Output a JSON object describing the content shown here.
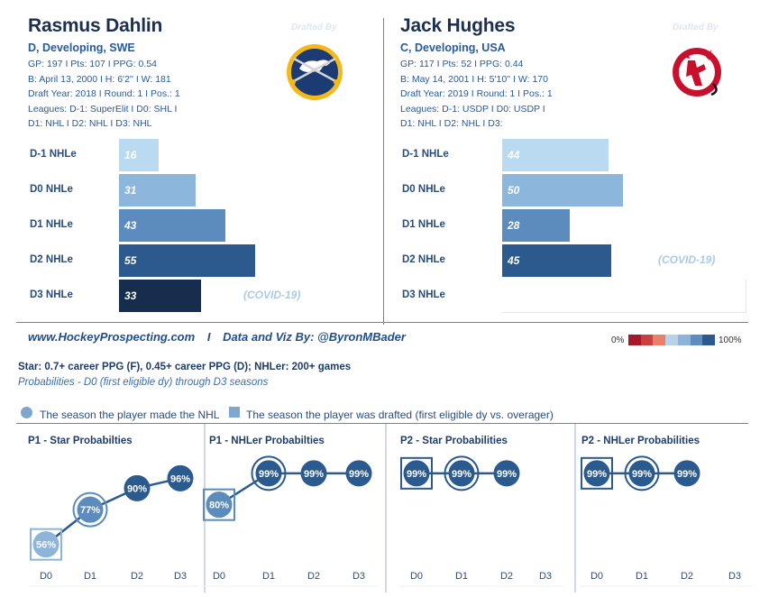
{
  "players": [
    {
      "name": "Rasmus Dahlin",
      "subtitle": "D, Developing, SWE",
      "info": [
        "GP: 197 I Pts: 107 I PPG: 0.54",
        "B: April 13, 2000 I H: 6'2'' I W: 181",
        "Draft Year: 2018 I Round: 1 I Pos.: 1",
        "Leagues: D-1: SuperElit I D0: SHL I",
        "D1: NHL I D2: NHL I D3: NHL"
      ],
      "drafted_by": "Drafted By",
      "team_logo": "buffalo-sabres-logo",
      "covid_note": "(COVID-19)"
    },
    {
      "name": "Jack Hughes",
      "subtitle": "C, Developing, USA",
      "info": [
        "GP: 117 I Pts: 52 I PPG: 0.44",
        "B: May 14, 2001 I H: 5'10'' I W: 170",
        "Draft Year: 2019 I Round: 1 I Pos.: 1",
        "Leagues: D-1: USDP I D0: USDP I",
        "D1: NHL I D2: NHL I D3:"
      ],
      "drafted_by": "Drafted By",
      "team_logo": "new-jersey-devils-logo",
      "covid_note": "(COVID-19)"
    }
  ],
  "footer": {
    "site": "www.HockeyProspecting.com",
    "divider": "I",
    "credit": "Data and Viz By: @ByronMBader",
    "scale_min": "0%",
    "scale_max": "100%",
    "scale_colors": [
      "#a3182b",
      "#c8413f",
      "#e8806b",
      "#b9d2e8",
      "#8fb3d8",
      "#5f8cbf",
      "#2d5a8e"
    ]
  },
  "definitions": {
    "line1": "Star: 0.7+ career PPG (F), 0.45+ career PPG (D); NHLer: 200+ games",
    "line2": "Probabilities - D0 (first eligible dy) through D3 seasons"
  },
  "legend": {
    "nhl_season": "The season the player made the NHL",
    "drafted_season": "The season the player was drafted (first eligible dy vs. overager)"
  },
  "colors": {
    "d_minus1": "#b9daf0",
    "d0": "#8cb6dc",
    "d1": "#5b8cbd",
    "d2": "#2d5a8e",
    "d3": "#172d4d",
    "prob_light": "#8db4d9",
    "prob_mid": "#5b8cbd",
    "prob_dark": "#2b5a8e"
  },
  "chart_data": [
    {
      "type": "bar",
      "orientation": "horizontal",
      "player": "Rasmus Dahlin",
      "categories": [
        "D-1 NHLe",
        "D0 NHLe",
        "D1 NHLe",
        "D2 NHLe",
        "D3 NHLe"
      ],
      "values": [
        16,
        31,
        43,
        55,
        33
      ],
      "value_labels": [
        "16",
        "31",
        "43",
        "55",
        "33"
      ],
      "xlim": [
        0,
        60
      ]
    },
    {
      "type": "bar",
      "orientation": "horizontal",
      "player": "Jack Hughes",
      "categories": [
        "D-1 NHLe",
        "D0 NHLe",
        "D1 NHLe",
        "D2 NHLe",
        "D3 NHLe"
      ],
      "values": [
        44,
        50,
        28,
        45,
        null
      ],
      "value_labels": [
        "44",
        "50",
        "28",
        "45",
        ""
      ],
      "xlim": [
        0,
        60
      ]
    },
    {
      "type": "line",
      "title": "P1 - Star Probabilties",
      "x": [
        "D0",
        "D1",
        "D2",
        "D3"
      ],
      "values": [
        56,
        77,
        90,
        96
      ],
      "labels": [
        "56%",
        "77%",
        "90%",
        "96%"
      ],
      "drafted_index": 0,
      "nhl_index": 1,
      "ylim": [
        40,
        100
      ]
    },
    {
      "type": "line",
      "title": "P1 - NHLer Probabilties",
      "x": [
        "D0",
        "D1",
        "D2",
        "D3"
      ],
      "values": [
        80,
        99,
        99,
        99
      ],
      "labels": [
        "80%",
        "99%",
        "99%",
        "99%"
      ],
      "drafted_index": 0,
      "nhl_index": 1,
      "ylim": [
        40,
        100
      ]
    },
    {
      "type": "line",
      "title": "P2 - Star Probabilities",
      "x": [
        "D0",
        "D1",
        "D2",
        "D3"
      ],
      "values": [
        99,
        99,
        99,
        null
      ],
      "labels": [
        "99%",
        "99%",
        "99%",
        ""
      ],
      "drafted_index": 0,
      "nhl_index": 1,
      "ylim": [
        40,
        100
      ]
    },
    {
      "type": "line",
      "title": "P2 - NHLer Probabilities",
      "x": [
        "D0",
        "D1",
        "D2",
        "D3"
      ],
      "values": [
        99,
        99,
        99,
        null
      ],
      "labels": [
        "99%",
        "99%",
        "99%",
        ""
      ],
      "drafted_index": 0,
      "nhl_index": 1,
      "ylim": [
        40,
        100
      ]
    }
  ]
}
